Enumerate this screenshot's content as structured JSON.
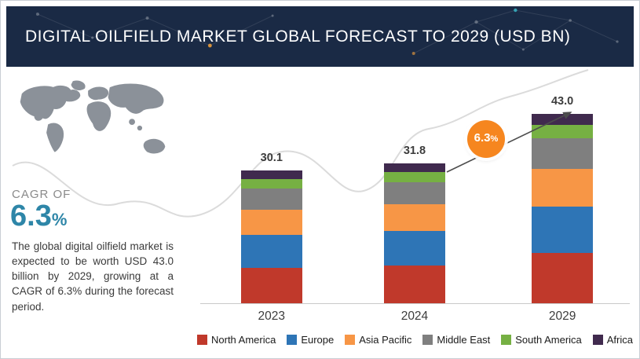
{
  "header": {
    "title": "DIGITAL OILFIELD MARKET GLOBAL FORECAST TO 2029 (USD BN)"
  },
  "sidebar": {
    "cagr_label": "CAGR OF",
    "cagr_value": "6.3",
    "cagr_unit": "%",
    "description": "The global digital oilfield market is expected to be worth USD 43.0 billion by 2029, growing at a CAGR of 6.3% during the forecast period."
  },
  "growth_badge": {
    "value": "6.3",
    "unit": "%"
  },
  "colors": {
    "header_bg": "#1a2a45",
    "accent_teal": "#2e86a8",
    "badge_orange": "#f6861f",
    "map_gray": "#8b9199",
    "axis_gray": "#c9c9c9"
  },
  "chart_data": {
    "type": "bar",
    "stacked": true,
    "title": "DIGITAL OILFIELD MARKET GLOBAL FORECAST TO 2029 (USD BN)",
    "unit": "USD BN",
    "categories": [
      "2023",
      "2024",
      "2029"
    ],
    "total_labels": [
      "30.1",
      "31.8",
      "43.0"
    ],
    "totals": [
      30.1,
      31.8,
      43.0
    ],
    "series": [
      {
        "name": "North America",
        "color": "#c0392b",
        "values": [
          8.0,
          8.5,
          11.5
        ]
      },
      {
        "name": "Europe",
        "color": "#2e75b6",
        "values": [
          7.5,
          7.9,
          10.5
        ]
      },
      {
        "name": "Asia Pacific",
        "color": "#f79646",
        "values": [
          5.8,
          6.2,
          8.5
        ]
      },
      {
        "name": "Middle East",
        "color": "#7f7f7f",
        "values": [
          4.8,
          5.0,
          7.0
        ]
      },
      {
        "name": "South America",
        "color": "#76b043",
        "values": [
          2.2,
          2.3,
          3.0
        ]
      },
      {
        "name": "Africa",
        "color": "#402a4e",
        "values": [
          1.8,
          1.9,
          2.5
        ]
      }
    ],
    "cagr_annotation": "6.3%",
    "ylim": [
      0,
      45
    ],
    "grid": false,
    "legend_position": "bottom"
  }
}
